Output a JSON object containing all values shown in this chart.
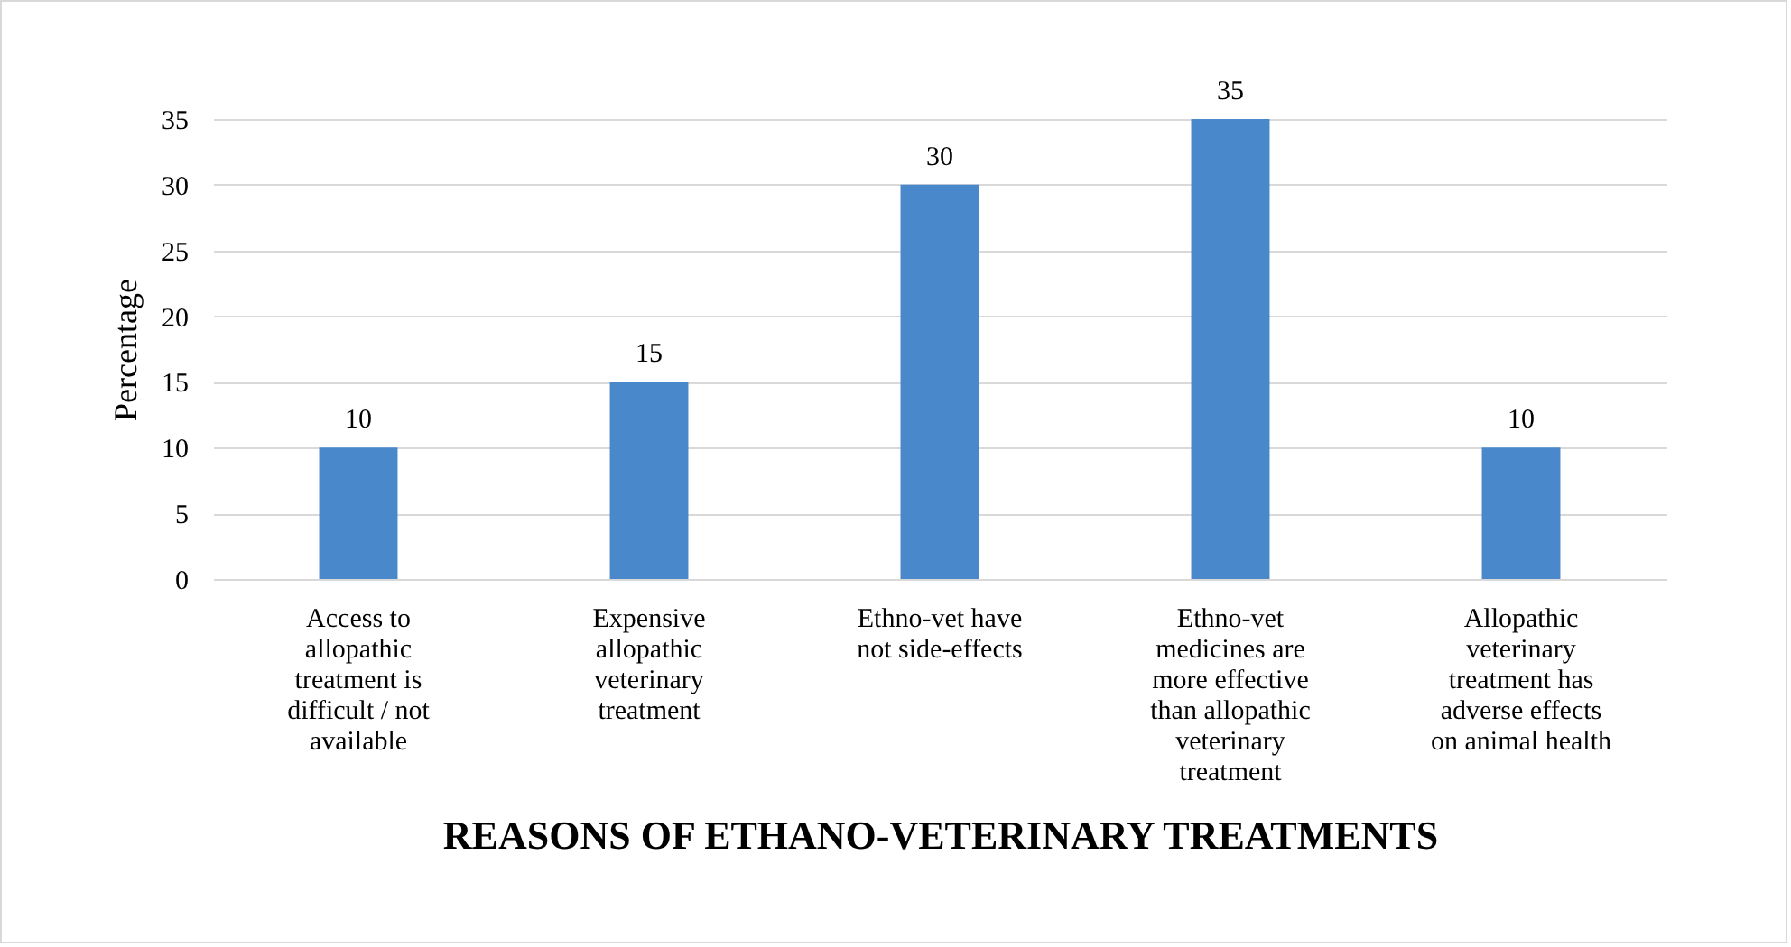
{
  "chart_data": {
    "type": "bar",
    "categories": [
      "Access to allopathic treatment is difficult / not available",
      "Expensive allopathic veterinary treatment",
      "Ethno-vet have not side-effects",
      "Ethno-vet medicines are more effective than allopathic veterinary treatment",
      "Allopathic veterinary treatment has adverse effects on animal health"
    ],
    "values": [
      10,
      15,
      30,
      35,
      10
    ],
    "color": "#4a88cc",
    "xlabel": "REASONS OF ETHANO-VETERINARY TREATMENTS",
    "ylabel": "Percentage",
    "ylim": [
      0,
      35
    ],
    "yticks": [
      0,
      5,
      10,
      15,
      20,
      25,
      30,
      35
    ],
    "grid": "y",
    "data_labels": true
  }
}
